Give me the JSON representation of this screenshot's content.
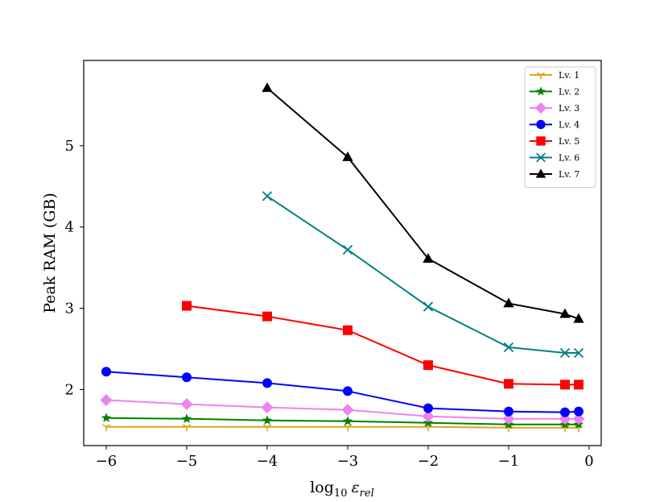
{
  "chart_data": {
    "type": "line",
    "title": "",
    "xlabel": "log",
    "xlabel_sub": "10",
    "xlabel_var": "ε",
    "xlabel_var_sub": "rel",
    "ylabel": "Peak RAM (GB)",
    "xlim": [
      -6.28,
      0.15
    ],
    "ylim": [
      1.31,
      6.05
    ],
    "xticks": [
      -6,
      -5,
      -4,
      -3,
      -2,
      -1,
      0
    ],
    "xtick_labels": [
      "−6",
      "−5",
      "−4",
      "−3",
      "−2",
      "−1",
      "0"
    ],
    "yticks": [
      2,
      3,
      4,
      5
    ],
    "ytick_labels": [
      "2",
      "3",
      "4",
      "5"
    ],
    "grid": false,
    "legend_position": "top-right",
    "series": [
      {
        "name": "Lv. 1",
        "color": "#daa520",
        "marker": "tri_down",
        "x": [
          -6,
          -5,
          -4,
          -3,
          -2,
          -1,
          -0.3,
          -0.13
        ],
        "y": [
          1.54,
          1.54,
          1.54,
          1.54,
          1.54,
          1.53,
          1.53,
          1.53
        ]
      },
      {
        "name": "Lv. 2",
        "color": "#008000",
        "marker": "star",
        "x": [
          -6,
          -5,
          -4,
          -3,
          -2,
          -1,
          -0.3,
          -0.13
        ],
        "y": [
          1.65,
          1.64,
          1.62,
          1.61,
          1.59,
          1.57,
          1.57,
          1.57
        ]
      },
      {
        "name": "Lv. 3",
        "color": "#ee82ee",
        "marker": "diamond",
        "x": [
          -6,
          -5,
          -4,
          -3,
          -2,
          -1,
          -0.3,
          -0.13
        ],
        "y": [
          1.87,
          1.82,
          1.78,
          1.75,
          1.67,
          1.64,
          1.64,
          1.64
        ]
      },
      {
        "name": "Lv. 4",
        "color": "#0000ff",
        "marker": "circle",
        "x": [
          -6,
          -5,
          -4,
          -3,
          -2,
          -1,
          -0.3,
          -0.13
        ],
        "y": [
          2.22,
          2.15,
          2.08,
          1.98,
          1.77,
          1.73,
          1.72,
          1.73
        ]
      },
      {
        "name": "Lv. 5",
        "color": "#ff0000",
        "marker": "square",
        "x": [
          -5,
          -4,
          -3,
          -2,
          -1,
          -0.3,
          -0.13
        ],
        "y": [
          3.03,
          2.9,
          2.73,
          2.3,
          2.07,
          2.06,
          2.06
        ]
      },
      {
        "name": "Lv. 6",
        "color": "#008080",
        "marker": "x",
        "x": [
          -4,
          -3,
          -2,
          -1,
          -0.3,
          -0.13
        ],
        "y": [
          4.38,
          3.72,
          3.02,
          2.52,
          2.45,
          2.45
        ]
      },
      {
        "name": "Lv. 7",
        "color": "#000000",
        "marker": "triangle",
        "x": [
          -4,
          -3,
          -2,
          -1,
          -0.3,
          -0.13
        ],
        "y": [
          5.71,
          4.86,
          3.61,
          3.06,
          2.93,
          2.87
        ]
      }
    ]
  }
}
